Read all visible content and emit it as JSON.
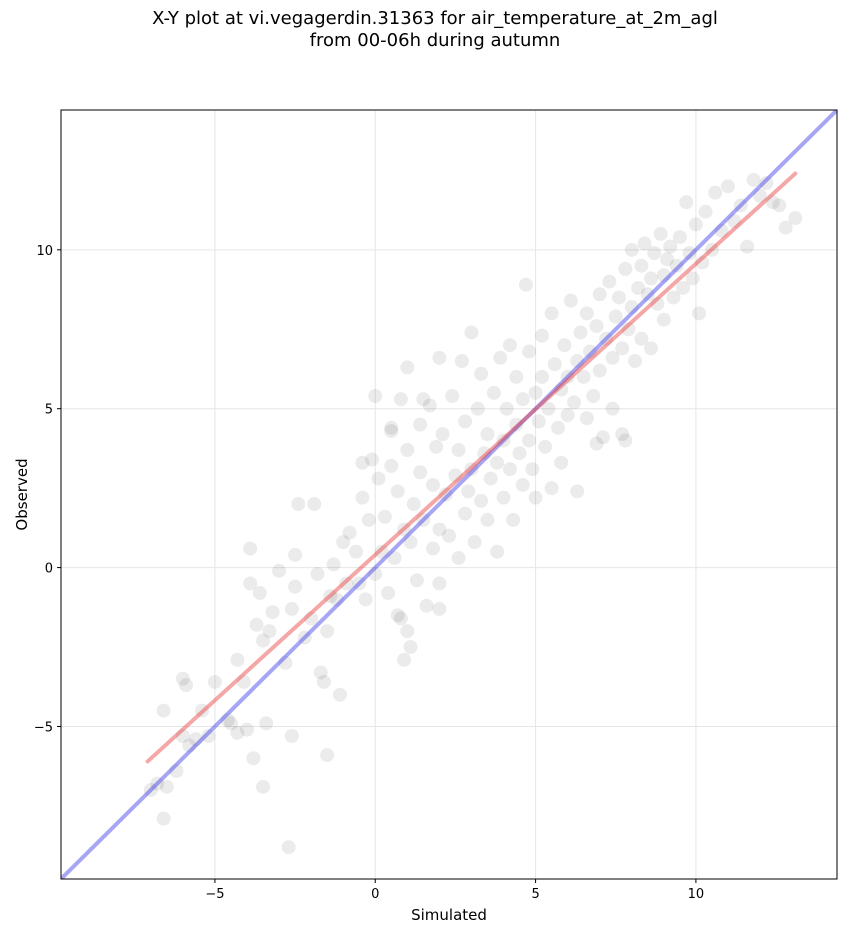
{
  "title_line1": "X-Y plot at vi.vegagerdin.31363 for air_temperature_at_2m_agl",
  "title_line2": "from 00-06h during autumn",
  "chart_data": {
    "type": "scatter",
    "title": "X-Y plot at vi.vegagerdin.31363 for air_temperature_at_2m_agl from 00-06h during autumn",
    "xlabel": "Simulated",
    "ylabel": "Observed",
    "xlim": [
      -9.8,
      14.4
    ],
    "ylim": [
      -9.8,
      14.4
    ],
    "x_ticks": [
      -5,
      0,
      5,
      10
    ],
    "y_ticks": [
      -5,
      0,
      5,
      10
    ],
    "x_tick_labels": [
      "−5",
      "0",
      "5",
      "10"
    ],
    "y_tick_labels": [
      "−5",
      "0",
      "5",
      "10"
    ],
    "grid": true,
    "point_color": "#000000",
    "point_opacity": 0.08,
    "points": [
      [
        -7.0,
        -7.0
      ],
      [
        -6.8,
        -6.8
      ],
      [
        -6.6,
        -7.9
      ],
      [
        -6.5,
        -6.9
      ],
      [
        -6.2,
        -6.4
      ],
      [
        -6.0,
        -5.3
      ],
      [
        -5.8,
        -5.6
      ],
      [
        -5.6,
        -5.4
      ],
      [
        -5.4,
        -4.5
      ],
      [
        -5.2,
        -5.3
      ],
      [
        -5.0,
        -3.6
      ],
      [
        -4.6,
        -4.8
      ],
      [
        -4.3,
        -5.2
      ],
      [
        -4.0,
        -5.1
      ],
      [
        -3.8,
        -6.0
      ],
      [
        -3.5,
        -6.9
      ],
      [
        -3.4,
        -4.9
      ],
      [
        -2.7,
        -8.8
      ],
      [
        -2.6,
        -5.3
      ],
      [
        -1.5,
        -5.9
      ],
      [
        -6.6,
        -4.5
      ],
      [
        -6.0,
        -3.5
      ],
      [
        -5.9,
        -3.7
      ],
      [
        -4.5,
        -4.9
      ],
      [
        -4.3,
        -2.9
      ],
      [
        -4.1,
        -3.6
      ],
      [
        -3.9,
        -0.5
      ],
      [
        -3.9,
        0.6
      ],
      [
        -3.7,
        -1.8
      ],
      [
        -3.6,
        -0.8
      ],
      [
        -3.5,
        -2.3
      ],
      [
        -3.3,
        -2.0
      ],
      [
        -3.2,
        -1.4
      ],
      [
        -3.0,
        -0.1
      ],
      [
        -2.8,
        -3.0
      ],
      [
        -2.6,
        -1.3
      ],
      [
        -2.5,
        -0.6
      ],
      [
        -2.5,
        0.4
      ],
      [
        -2.4,
        2.0
      ],
      [
        -2.2,
        -2.2
      ],
      [
        -2.0,
        -1.6
      ],
      [
        -1.9,
        2.0
      ],
      [
        -1.8,
        -0.2
      ],
      [
        -1.7,
        -3.3
      ],
      [
        -1.6,
        -3.6
      ],
      [
        -1.5,
        -2.0
      ],
      [
        -1.4,
        -0.9
      ],
      [
        -1.3,
        0.1
      ],
      [
        -1.2,
        -1.0
      ],
      [
        -1.1,
        -4.0
      ],
      [
        -1.0,
        0.8
      ],
      [
        -0.9,
        -0.5
      ],
      [
        -0.8,
        1.1
      ],
      [
        -0.6,
        0.5
      ],
      [
        -0.5,
        -0.5
      ],
      [
        -0.4,
        2.2
      ],
      [
        -0.3,
        -1.0
      ],
      [
        -0.2,
        1.5
      ],
      [
        -0.1,
        3.4
      ],
      [
        0.0,
        -0.2
      ],
      [
        0.1,
        2.8
      ],
      [
        0.0,
        5.4
      ],
      [
        0.2,
        0.5
      ],
      [
        0.3,
        1.6
      ],
      [
        0.4,
        -0.8
      ],
      [
        0.5,
        3.2
      ],
      [
        0.5,
        4.3
      ],
      [
        0.6,
        0.3
      ],
      [
        0.7,
        -1.5
      ],
      [
        0.7,
        2.4
      ],
      [
        0.8,
        5.3
      ],
      [
        0.9,
        -2.9
      ],
      [
        0.9,
        1.2
      ],
      [
        1.0,
        3.7
      ],
      [
        1.0,
        6.3
      ],
      [
        1.1,
        -2.5
      ],
      [
        1.1,
        0.8
      ],
      [
        1.2,
        2.0
      ],
      [
        1.3,
        -0.4
      ],
      [
        1.4,
        4.5
      ],
      [
        1.4,
        3.0
      ],
      [
        1.5,
        1.5
      ],
      [
        1.6,
        -1.2
      ],
      [
        1.7,
        5.1
      ],
      [
        1.8,
        2.6
      ],
      [
        1.8,
        0.6
      ],
      [
        1.9,
        3.8
      ],
      [
        2.0,
        1.2
      ],
      [
        2.0,
        -0.5
      ],
      [
        2.1,
        4.2
      ],
      [
        2.2,
        2.3
      ],
      [
        2.3,
        1.0
      ],
      [
        2.4,
        5.4
      ],
      [
        2.5,
        2.9
      ],
      [
        2.6,
        0.3
      ],
      [
        2.6,
        3.7
      ],
      [
        2.7,
        6.5
      ],
      [
        2.8,
        1.7
      ],
      [
        2.8,
        4.6
      ],
      [
        2.9,
        2.4
      ],
      [
        3.0,
        7.4
      ],
      [
        3.0,
        3.1
      ],
      [
        3.1,
        0.8
      ],
      [
        3.2,
        5.0
      ],
      [
        3.3,
        2.1
      ],
      [
        3.3,
        6.1
      ],
      [
        3.4,
        3.6
      ],
      [
        3.5,
        1.5
      ],
      [
        3.5,
        4.2
      ],
      [
        3.6,
        2.8
      ],
      [
        3.7,
        5.5
      ],
      [
        3.8,
        0.5
      ],
      [
        3.8,
        3.3
      ],
      [
        3.9,
        6.6
      ],
      [
        4.0,
        4.0
      ],
      [
        4.0,
        2.2
      ],
      [
        4.1,
        5.0
      ],
      [
        4.2,
        3.1
      ],
      [
        4.2,
        7.0
      ],
      [
        4.3,
        1.5
      ],
      [
        4.4,
        4.5
      ],
      [
        4.4,
        6.0
      ],
      [
        4.5,
        3.6
      ],
      [
        4.6,
        2.6
      ],
      [
        4.6,
        5.3
      ],
      [
        4.7,
        8.9
      ],
      [
        4.8,
        4.0
      ],
      [
        4.8,
        6.8
      ],
      [
        4.9,
        3.1
      ],
      [
        5.0,
        5.5
      ],
      [
        5.0,
        2.2
      ],
      [
        5.1,
        4.6
      ],
      [
        5.2,
        7.3
      ],
      [
        5.2,
        6.0
      ],
      [
        5.3,
        3.8
      ],
      [
        5.4,
        5.0
      ],
      [
        5.5,
        8.0
      ],
      [
        5.5,
        2.5
      ],
      [
        5.6,
        6.4
      ],
      [
        5.7,
        4.4
      ],
      [
        5.8,
        5.6
      ],
      [
        5.8,
        3.3
      ],
      [
        5.9,
        7.0
      ],
      [
        6.0,
        6.0
      ],
      [
        6.0,
        4.8
      ],
      [
        6.1,
        8.4
      ],
      [
        6.2,
        5.2
      ],
      [
        6.3,
        6.5
      ],
      [
        6.3,
        2.4
      ],
      [
        6.4,
        7.4
      ],
      [
        6.5,
        6.0
      ],
      [
        6.6,
        4.7
      ],
      [
        6.6,
        8.0
      ],
      [
        6.7,
        6.8
      ],
      [
        6.8,
        5.4
      ],
      [
        6.9,
        7.6
      ],
      [
        7.0,
        6.2
      ],
      [
        7.0,
        8.6
      ],
      [
        7.1,
        4.1
      ],
      [
        7.2,
        7.2
      ],
      [
        7.3,
        9.0
      ],
      [
        7.4,
        6.6
      ],
      [
        7.4,
        5.0
      ],
      [
        7.5,
        7.9
      ],
      [
        7.6,
        8.5
      ],
      [
        7.7,
        6.9
      ],
      [
        7.8,
        9.4
      ],
      [
        7.8,
        4.0
      ],
      [
        7.9,
        7.5
      ],
      [
        8.0,
        8.2
      ],
      [
        8.0,
        10.0
      ],
      [
        8.1,
        6.5
      ],
      [
        8.2,
        8.8
      ],
      [
        8.3,
        9.5
      ],
      [
        8.3,
        7.2
      ],
      [
        8.4,
        10.2
      ],
      [
        8.5,
        8.6
      ],
      [
        8.6,
        9.1
      ],
      [
        8.6,
        6.9
      ],
      [
        8.7,
        9.9
      ],
      [
        8.8,
        8.3
      ],
      [
        8.9,
        10.5
      ],
      [
        9.0,
        9.2
      ],
      [
        9.0,
        7.8
      ],
      [
        9.1,
        9.7
      ],
      [
        9.2,
        10.1
      ],
      [
        9.3,
        8.5
      ],
      [
        9.4,
        9.5
      ],
      [
        9.5,
        10.4
      ],
      [
        9.6,
        8.8
      ],
      [
        9.7,
        11.5
      ],
      [
        9.8,
        9.9
      ],
      [
        9.9,
        9.1
      ],
      [
        10.0,
        10.8
      ],
      [
        10.1,
        8.0
      ],
      [
        10.2,
        9.6
      ],
      [
        10.3,
        11.2
      ],
      [
        10.5,
        10.0
      ],
      [
        10.6,
        11.8
      ],
      [
        10.8,
        10.6
      ],
      [
        11.0,
        12.0
      ],
      [
        11.2,
        10.9
      ],
      [
        11.4,
        11.4
      ],
      [
        11.6,
        10.1
      ],
      [
        11.8,
        12.2
      ],
      [
        12.0,
        11.7
      ],
      [
        12.2,
        12.1
      ],
      [
        12.4,
        11.5
      ],
      [
        12.6,
        11.4
      ],
      [
        12.8,
        10.7
      ],
      [
        13.1,
        11.0
      ],
      [
        2.0,
        6.6
      ],
      [
        1.5,
        5.3
      ],
      [
        0.5,
        4.4
      ],
      [
        -0.4,
        3.3
      ],
      [
        1.0,
        -2.0
      ],
      [
        0.8,
        -1.6
      ],
      [
        2.0,
        -1.3
      ],
      [
        6.9,
        3.9
      ],
      [
        7.7,
        4.2
      ]
    ],
    "fit_line": {
      "color": "#e83a3a",
      "opacity": 0.45,
      "x": [
        -7.1,
        13.1
      ],
      "y": [
        -6.1,
        12.4
      ]
    },
    "identity_line": {
      "color": "#3a3ae8",
      "opacity": 0.45,
      "x": [
        -9.8,
        14.4
      ],
      "y": [
        -9.8,
        14.4
      ]
    }
  }
}
